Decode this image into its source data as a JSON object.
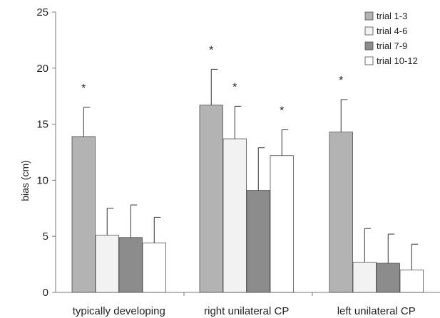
{
  "chart_data": {
    "type": "bar",
    "title": "",
    "xlabel": "",
    "ylabel": "bias (cm)",
    "ylim": [
      0,
      25
    ],
    "yticks": [
      0,
      5,
      10,
      15,
      20,
      25
    ],
    "grid": false,
    "legend_position": "top-right",
    "categories": [
      "typically developing",
      "right unilateral CP",
      "left unilateral CP"
    ],
    "series": [
      {
        "name": "trial 1-3",
        "color": "#b3b3b3",
        "values": [
          13.9,
          16.7,
          14.3
        ],
        "errors": [
          2.6,
          3.2,
          2.9
        ],
        "significant": [
          true,
          true,
          true
        ]
      },
      {
        "name": "trial 4-6",
        "color": "#f2f2f2",
        "values": [
          5.1,
          13.7,
          2.7
        ],
        "errors": [
          2.4,
          2.9,
          3.0
        ],
        "significant": [
          false,
          true,
          false
        ]
      },
      {
        "name": "trial 7-9",
        "color": "#8c8c8c",
        "values": [
          4.9,
          9.1,
          2.6
        ],
        "errors": [
          2.9,
          3.8,
          2.6
        ],
        "significant": [
          false,
          false,
          false
        ]
      },
      {
        "name": "trial 10-12",
        "color": "#ffffff",
        "values": [
          4.4,
          12.2,
          2.0
        ],
        "errors": [
          2.3,
          2.3,
          2.3
        ],
        "significant": [
          false,
          true,
          false
        ]
      }
    ],
    "significance_marker": "*"
  }
}
